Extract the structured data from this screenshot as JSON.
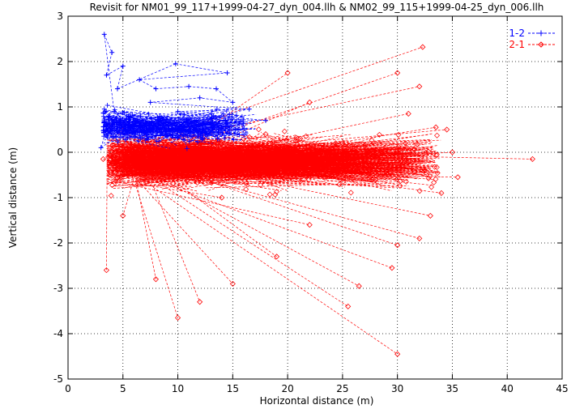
{
  "chart_data": {
    "type": "scatter",
    "title": "Revisit for NM01_99_117+1999-04-27_dyn_004.llh & NM02_99_115+1999-04-25_dyn_006.llh",
    "xlabel": "Horizontal distance (m)",
    "ylabel": "Vertical distance (m)",
    "xlim": [
      0,
      45
    ],
    "ylim": [
      -5,
      3
    ],
    "xticks": [
      0,
      5,
      10,
      15,
      20,
      25,
      30,
      35,
      40,
      45
    ],
    "yticks": [
      -5,
      -4,
      -3,
      -2,
      -1,
      0,
      1,
      2,
      3
    ],
    "grid": true,
    "legend_position": "top-right",
    "series": [
      {
        "name": "1-2",
        "color": "#0000ff",
        "marker": "plus",
        "line": "dashed",
        "representative_points": [
          {
            "x": 3.3,
            "y": 2.6
          },
          {
            "x": 4.0,
            "y": 2.2
          },
          {
            "x": 3.5,
            "y": 1.7
          },
          {
            "x": 5.0,
            "y": 1.9
          },
          {
            "x": 4.5,
            "y": 1.4
          },
          {
            "x": 9.8,
            "y": 1.95
          },
          {
            "x": 14.5,
            "y": 1.75
          },
          {
            "x": 6.5,
            "y": 1.6
          },
          {
            "x": 8.0,
            "y": 1.4
          },
          {
            "x": 11.0,
            "y": 1.45
          },
          {
            "x": 13.5,
            "y": 1.4
          },
          {
            "x": 15.0,
            "y": 1.1
          },
          {
            "x": 12.0,
            "y": 1.2
          },
          {
            "x": 7.5,
            "y": 1.1
          },
          {
            "x": 16.5,
            "y": 0.95
          },
          {
            "x": 10.0,
            "y": 0.9
          },
          {
            "x": 18.0,
            "y": 0.7
          },
          {
            "x": 5.5,
            "y": 0.8
          },
          {
            "x": 3.5,
            "y": 0.5
          },
          {
            "x": 3.0,
            "y": 0.1
          },
          {
            "x": 6.0,
            "y": 0.6
          },
          {
            "x": 13.0,
            "y": 0.6
          },
          {
            "x": 8.5,
            "y": 0.5
          },
          {
            "x": 4.2,
            "y": 0.9
          }
        ]
      },
      {
        "name": "2-1",
        "color": "#ff0000",
        "marker": "diamond",
        "line": "dashed",
        "representative_points": [
          {
            "x": 32.3,
            "y": 2.32
          },
          {
            "x": 30.0,
            "y": 1.75
          },
          {
            "x": 20.0,
            "y": 1.75
          },
          {
            "x": 32.0,
            "y": 1.45
          },
          {
            "x": 22.0,
            "y": 1.1
          },
          {
            "x": 31.0,
            "y": 0.85
          },
          {
            "x": 33.5,
            "y": 0.55
          },
          {
            "x": 34.5,
            "y": 0.5
          },
          {
            "x": 35.0,
            "y": 0.0
          },
          {
            "x": 42.3,
            "y": -0.15
          },
          {
            "x": 35.5,
            "y": -0.55
          },
          {
            "x": 34.0,
            "y": -0.9
          },
          {
            "x": 33.0,
            "y": -1.4
          },
          {
            "x": 32.0,
            "y": -1.9
          },
          {
            "x": 30.0,
            "y": -2.05
          },
          {
            "x": 29.5,
            "y": -2.55
          },
          {
            "x": 26.5,
            "y": -2.95
          },
          {
            "x": 25.5,
            "y": -3.4
          },
          {
            "x": 30.0,
            "y": -4.45
          },
          {
            "x": 10.0,
            "y": -3.65
          },
          {
            "x": 3.5,
            "y": -2.6
          },
          {
            "x": 5.0,
            "y": -1.4
          },
          {
            "x": 8.0,
            "y": -2.8
          },
          {
            "x": 15.0,
            "y": -2.9
          },
          {
            "x": 12.0,
            "y": -3.3
          },
          {
            "x": 19.0,
            "y": -2.3
          },
          {
            "x": 22.0,
            "y": -1.6
          },
          {
            "x": 3.2,
            "y": -0.15
          },
          {
            "x": 25.0,
            "y": 0.2
          },
          {
            "x": 28.0,
            "y": -0.6
          },
          {
            "x": 18.0,
            "y": 0.4
          },
          {
            "x": 14.0,
            "y": -1.0
          },
          {
            "x": 9.0,
            "y": -0.4
          }
        ],
        "dense_band": {
          "x_range": [
            3.5,
            34
          ],
          "y_range": [
            -0.9,
            0.5
          ]
        }
      }
    ]
  }
}
